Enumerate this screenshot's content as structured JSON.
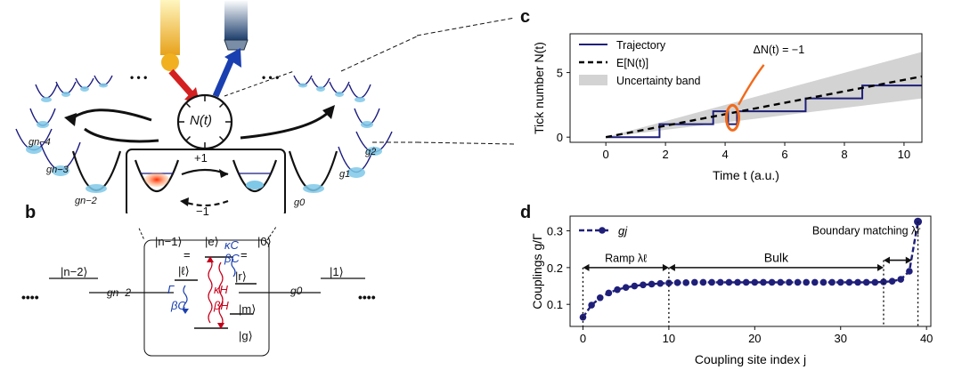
{
  "panels": {
    "b_letter": "b",
    "c_letter": "c",
    "d_letter": "d"
  },
  "panel_a": {
    "clock_label": "N(t)",
    "plus_one": "+1",
    "minus_one": "−1",
    "dots_left": "• • •",
    "dots_right": "• • •",
    "coupling_labels": [
      "gn−4",
      "gn−3",
      "gn−2",
      "g0",
      "g1",
      "g2"
    ],
    "colors": {
      "hot_arrow": "#d42020",
      "cold_arrow": "#1a3fb0",
      "well_fill": "#7fc8e8",
      "well_line": "#1a1a80"
    }
  },
  "panel_b": {
    "left_state": "|n−2⟩",
    "right_state": "|1⟩",
    "left_coupling": "gn−2",
    "right_coupling": "g0",
    "top_left_state": "|n−1⟩",
    "top_right_state": "|0⟩",
    "excited": "|e⟩",
    "ell": "|ℓ⟩",
    "r_state": "|r⟩",
    "m_state": "|m⟩",
    "g_state": "|g⟩",
    "kappa_c": "κC",
    "beta_c_top": "βC",
    "kappa_h": "κH",
    "beta_h": "βH",
    "gamma": "Γ",
    "beta_c_bottom": "βC",
    "dots": "••••"
  },
  "chart_data": [
    {
      "panel": "c",
      "type": "line",
      "xlabel": "Time t (a.u.)",
      "ylabel": "Tick number N(t)",
      "xlim": [
        -1.2,
        10.6
      ],
      "ylim": [
        -0.4,
        8
      ],
      "xticks": [
        0,
        2,
        4,
        6,
        8,
        10
      ],
      "yticks": [
        0,
        5
      ],
      "annotation": "ΔN(t) = −1",
      "legend": [
        "Trajectory",
        "E[N(t)]",
        "Uncertainty band"
      ],
      "legend_position": "top-left",
      "series": [
        {
          "name": "Trajectory",
          "style": "step",
          "color": "#1f1f7a",
          "x": [
            0,
            1.8,
            1.8,
            3.6,
            3.6,
            4.1,
            4.1,
            4.4,
            4.4,
            6.7,
            6.7,
            8.6,
            8.6,
            10.6
          ],
          "y": [
            0,
            0,
            1,
            1,
            2,
            2,
            1,
            1,
            2,
            2,
            3,
            3,
            4,
            4
          ]
        },
        {
          "name": "E[N(t)]",
          "style": "dashed",
          "color": "#000000",
          "x": [
            0,
            10.6
          ],
          "y": [
            0,
            4.7
          ]
        },
        {
          "name": "Uncertainty band",
          "style": "band",
          "color": "#d3d3d3",
          "x": [
            0,
            10.6
          ],
          "lower": [
            0,
            3.0
          ],
          "upper": [
            0,
            6.6
          ]
        }
      ]
    },
    {
      "panel": "d",
      "type": "scatter",
      "xlabel": "Coupling site index j",
      "ylabel": "Couplings g/Γ",
      "xlim": [
        -1.5,
        40.5
      ],
      "ylim": [
        0.04,
        0.34
      ],
      "xticks": [
        0,
        10,
        20,
        30,
        40
      ],
      "yticks": [
        0.1,
        0.2,
        0.3
      ],
      "legend": [
        "gj"
      ],
      "region_labels": [
        "Ramp λℓ",
        "Bulk",
        "Boundary matching λr"
      ],
      "series": [
        {
          "name": "gj",
          "color": "#1f1f7a",
          "x": [
            0,
            1,
            2,
            3,
            4,
            5,
            6,
            7,
            8,
            9,
            10,
            11,
            12,
            13,
            14,
            15,
            16,
            17,
            18,
            19,
            20,
            21,
            22,
            23,
            24,
            25,
            26,
            27,
            28,
            29,
            30,
            31,
            32,
            33,
            34,
            35,
            36,
            37,
            38,
            39
          ],
          "y": [
            0.065,
            0.098,
            0.118,
            0.131,
            0.14,
            0.146,
            0.15,
            0.153,
            0.155,
            0.157,
            0.158,
            0.159,
            0.159,
            0.16,
            0.16,
            0.16,
            0.16,
            0.16,
            0.16,
            0.16,
            0.16,
            0.16,
            0.16,
            0.16,
            0.16,
            0.16,
            0.16,
            0.16,
            0.16,
            0.16,
            0.16,
            0.16,
            0.16,
            0.16,
            0.16,
            0.161,
            0.163,
            0.168,
            0.19,
            0.325
          ]
        }
      ]
    }
  ]
}
